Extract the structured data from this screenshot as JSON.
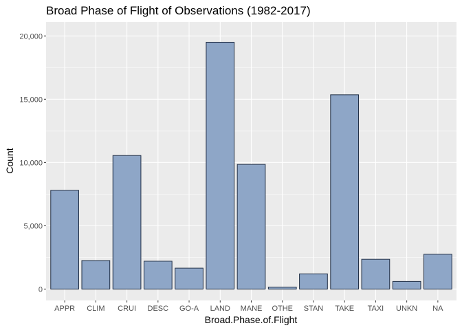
{
  "chart_data": {
    "type": "bar",
    "title": "Broad Phase of Flight of Observations (1982-2017)",
    "xlabel": "Broad.Phase.of.Flight",
    "ylabel": "Count",
    "categories": [
      "APPR",
      "CLIM",
      "CRUI",
      "DESC",
      "GO-A",
      "LAND",
      "MANE",
      "OTHE",
      "STAN",
      "TAKE",
      "TAXI",
      "UNKN",
      "NA"
    ],
    "values": [
      7800,
      2250,
      10550,
      2200,
      1650,
      19500,
      9850,
      150,
      1200,
      15350,
      2350,
      600,
      2750
    ],
    "ylim": [
      -900,
      21100
    ],
    "yticks": [
      0,
      5000,
      10000,
      15000,
      20000
    ],
    "ytick_labels": [
      "0",
      "5,000",
      "10,000",
      "15,000",
      "20,000"
    ],
    "grid": true,
    "colors": {
      "panel": "#ebebeb",
      "grid_major": "#ffffff",
      "bar_fill": "#8ea6c7",
      "bar_stroke": "#1f2d44",
      "tick": "#333333"
    }
  }
}
